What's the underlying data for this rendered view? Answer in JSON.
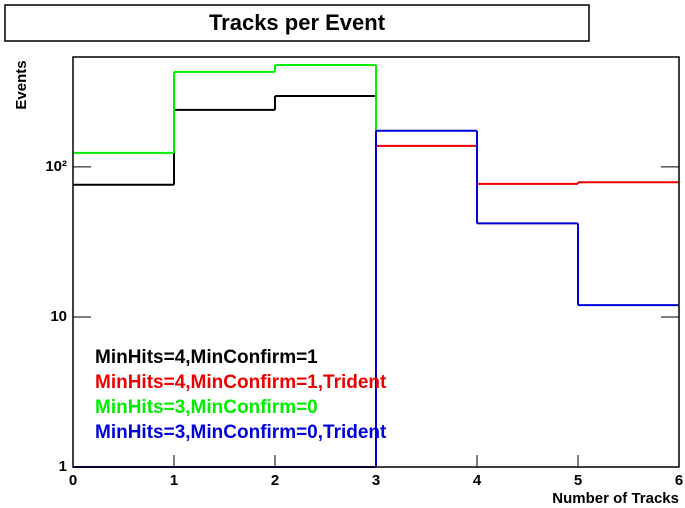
{
  "chart_data": {
    "type": "histogram",
    "title": "Tracks per Event",
    "x_label": "Number of Tracks",
    "y_label": "Events",
    "bins": [
      0,
      1,
      2,
      3,
      4,
      5,
      6
    ],
    "series": [
      {
        "name": "MinHits=4,MinConfirm=1",
        "color": "#000000",
        "values": [
          76,
          240,
          297,
          null,
          null,
          null
        ]
      },
      {
        "name": "MinHits=4,MinConfirm=1,Trident",
        "color": "#ee0000",
        "values": [
          1,
          1,
          1,
          138,
          77,
          79
        ]
      },
      {
        "name": "MinHits=3,MinConfirm=0",
        "color": "#00ee00",
        "values": [
          124,
          430,
          478,
          null,
          null,
          null
        ]
      },
      {
        "name": "MinHits=3,MinConfirm=0,Trident",
        "color": "#0000dd",
        "values": [
          1,
          1,
          1,
          174,
          42,
          12
        ]
      }
    ],
    "xlim": [
      0,
      6
    ],
    "xticks": [
      0,
      1,
      2,
      3,
      4,
      5,
      6
    ],
    "ylim": [
      1,
      540
    ],
    "yticks": [
      1,
      10,
      {
        "value": 100,
        "label": "10²"
      }
    ],
    "log_y": true,
    "legend": "bottom-left"
  }
}
